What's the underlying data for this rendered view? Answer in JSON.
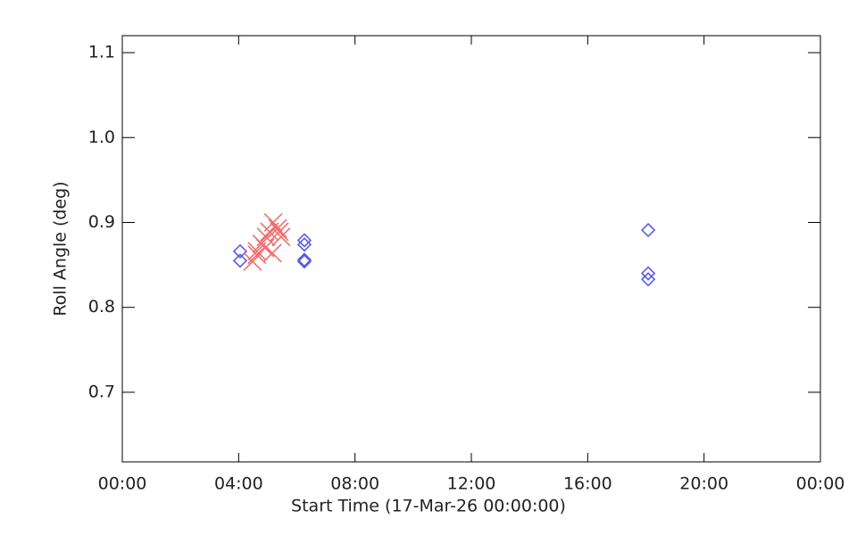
{
  "chart_data": {
    "type": "scatter",
    "xlabel": "Start Time (17-Mar-26 00:00:00)",
    "ylabel": "Roll Angle (deg)",
    "xlim": [
      0,
      24
    ],
    "ylim": [
      0.618,
      1.12
    ],
    "xticks": [
      {
        "value": 0,
        "label": "00:00"
      },
      {
        "value": 4,
        "label": "04:00"
      },
      {
        "value": 8,
        "label": "08:00"
      },
      {
        "value": 12,
        "label": "12:00"
      },
      {
        "value": 16,
        "label": "16:00"
      },
      {
        "value": 20,
        "label": "20:00"
      },
      {
        "value": 24,
        "label": "00:00"
      }
    ],
    "yticks": [
      0.7,
      0.8,
      0.9,
      {
        "value": 1,
        "label": "1.0"
      },
      1.1
    ],
    "series": [
      {
        "color": "#5a5ae8",
        "marker": "diamond",
        "x": [
          4.05,
          4.05,
          6.26,
          6.26,
          6.26,
          6.26,
          18.08,
          18.08,
          18.08
        ],
        "values": [
          0.866,
          0.855,
          0.879,
          0.874,
          0.856,
          0.854,
          0.891,
          0.84,
          0.833
        ]
      },
      {
        "color": "#f07070",
        "marker": "cross",
        "x": [
          4.48,
          4.63,
          4.79,
          4.94,
          5.06,
          5.19,
          5.34,
          5.46,
          5.16,
          4.91,
          4.63,
          5.4
        ],
        "values": [
          0.854,
          0.866,
          0.875,
          0.883,
          0.889,
          0.9,
          0.893,
          0.883,
          0.864,
          0.87,
          0.862,
          0.889
        ]
      }
    ]
  }
}
